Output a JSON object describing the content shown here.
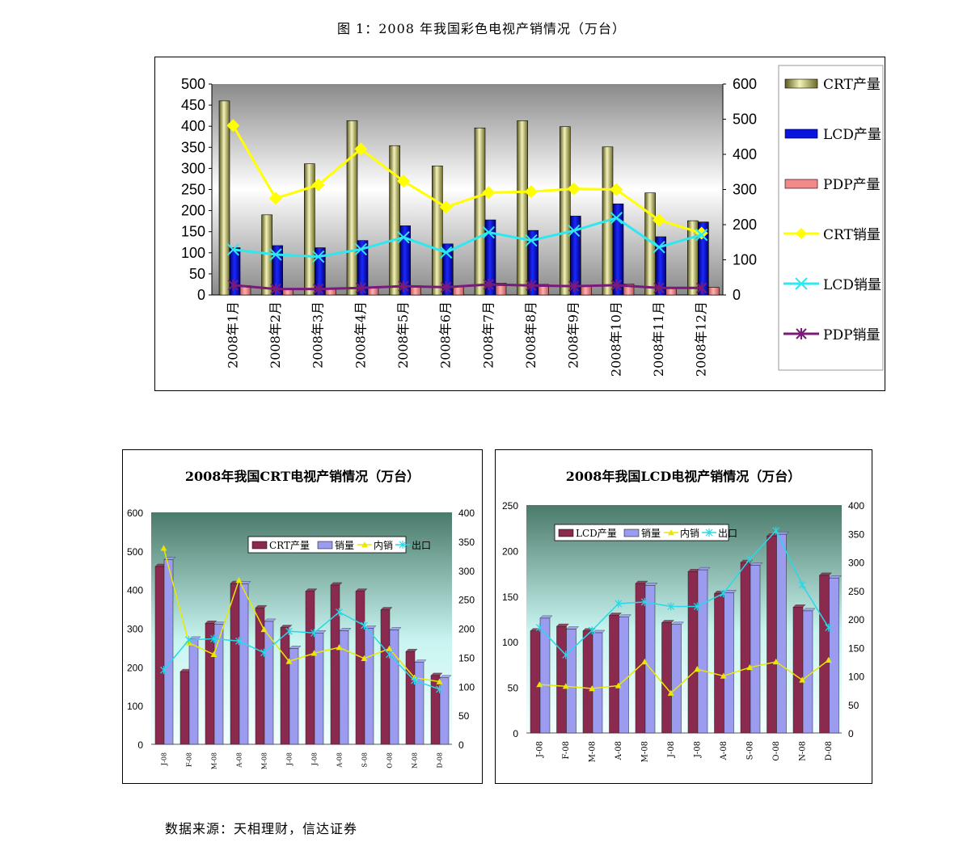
{
  "figure_title": "图 1：2008 年我国彩色电视产销情况（万台）",
  "source": "数据来源：天相理财，信达证券",
  "colors": {
    "crt_bar": "#c9c87a",
    "lcd_bar": "#0a14e0",
    "pdp_bar": "#f28a8a",
    "crt_line": "#ffff00",
    "lcd_line": "#2ee8f0",
    "pdp_line": "#7a1a7a",
    "maroon_bar": "#8a2a4e",
    "lav_bar": "#9b9bf0",
    "yellow_line": "#e8e800",
    "cyan_line": "#28d8e8"
  },
  "chart_data": [
    {
      "id": "top",
      "type": "bar",
      "title": "",
      "categories": [
        "2008年1月",
        "2008年2月",
        "2008年3月",
        "2008年4月",
        "2008年5月",
        "2008年6月",
        "2008年7月",
        "2008年8月",
        "2008年9月",
        "2008年10月",
        "2008年11月",
        "2008年12月"
      ],
      "left_axis": {
        "ylim": [
          0,
          500
        ],
        "ticks": [
          "0",
          "50",
          "100",
          "150",
          "200",
          "250",
          "300",
          "350",
          "400",
          "450",
          "500"
        ]
      },
      "right_axis": {
        "ylim": [
          0,
          600
        ],
        "ticks": [
          "0",
          "100",
          "200",
          "300",
          "400",
          "500",
          "600"
        ]
      },
      "legend_position": "right",
      "bar_series": [
        {
          "name": "CRT产量",
          "values": [
            460,
            190,
            311,
            413,
            354,
            306,
            396,
            413,
            399,
            351,
            242,
            176
          ]
        },
        {
          "name": "LCD产量",
          "values": [
            112,
            117,
            112,
            129,
            164,
            121,
            178,
            153,
            187,
            216,
            138,
            173
          ]
        },
        {
          "name": "PDP产量",
          "values": [
            22,
            14,
            14,
            17,
            22,
            20,
            28,
            25,
            22,
            26,
            18,
            18
          ]
        }
      ],
      "line_series": [
        {
          "name": "CRT销量",
          "axis": "right",
          "values": [
            482,
            275,
            313,
            415,
            324,
            250,
            291,
            294,
            302,
            300,
            213,
            176
          ]
        },
        {
          "name": "LCD销量",
          "axis": "right",
          "values": [
            129,
            115,
            109,
            130,
            164,
            121,
            178,
            155,
            183,
            219,
            136,
            171
          ]
        },
        {
          "name": "PDP销量",
          "axis": "right",
          "values": [
            28,
            17,
            17,
            20,
            25,
            22,
            30,
            27,
            25,
            28,
            20,
            20
          ]
        }
      ]
    },
    {
      "id": "crt",
      "type": "bar",
      "title": "2008年我国CRT电视产销情况（万台）",
      "categories": [
        "J-08",
        "F-08",
        "M-08",
        "A-08",
        "M-08",
        "J-08",
        "J-08",
        "A-08",
        "S-08",
        "O-08",
        "N-08",
        "D-08"
      ],
      "left_axis": {
        "ylim": [
          0,
          600
        ],
        "ticks": [
          "0",
          "100",
          "200",
          "300",
          "400",
          "500",
          "600"
        ]
      },
      "right_axis": {
        "ylim": [
          0,
          400
        ],
        "ticks": [
          "0",
          "50",
          "100",
          "150",
          "200",
          "250",
          "300",
          "350",
          "400"
        ]
      },
      "legend_position": "top-center",
      "bar_series": [
        {
          "name": "CRT产量",
          "values": [
            460,
            188,
            313,
            416,
            353,
            302,
            396,
            412,
            396,
            348,
            240,
            178
          ]
        },
        {
          "name": "销量",
          "values": [
            478,
            272,
            310,
            415,
            318,
            248,
            288,
            294,
            300,
            296,
            212,
            172
          ]
        }
      ],
      "line_series": [
        {
          "name": "内销",
          "axis": "right",
          "values": [
            338,
            175,
            155,
            283,
            198,
            143,
            157,
            167,
            148,
            165,
            115,
            108
          ]
        },
        {
          "name": "出口",
          "axis": "right",
          "values": [
            128,
            180,
            182,
            178,
            158,
            195,
            192,
            228,
            205,
            155,
            110,
            95
          ]
        }
      ]
    },
    {
      "id": "lcd",
      "type": "bar",
      "title": "2008年我国LCD电视产销情况（万台）",
      "categories": [
        "J-08",
        "F-08",
        "M-08",
        "A-08",
        "M-08",
        "J-08",
        "J-08",
        "A-08",
        "S-08",
        "O-08",
        "N-08",
        "D-08"
      ],
      "left_axis": {
        "ylim": [
          0,
          250
        ],
        "ticks": [
          "0",
          "50",
          "100",
          "150",
          "200",
          "250"
        ]
      },
      "right_axis": {
        "ylim": [
          0,
          400
        ],
        "ticks": [
          "0",
          "50",
          "100",
          "150",
          "200",
          "250",
          "300",
          "350",
          "400"
        ]
      },
      "legend_position": "top-center",
      "bar_series": [
        {
          "name": "LCD产量",
          "values": [
            112,
            117,
            112,
            129,
            164,
            121,
            177,
            153,
            187,
            216,
            138,
            173
          ]
        },
        {
          "name": "销量",
          "values": [
            126,
            114,
            110,
            127,
            162,
            119,
            179,
            154,
            184,
            218,
            134,
            170
          ]
        }
      ],
      "line_series": [
        {
          "name": "内销",
          "axis": "right",
          "values": [
            85,
            82,
            78,
            83,
            125,
            70,
            112,
            100,
            115,
            125,
            93,
            128
          ]
        },
        {
          "name": "出口",
          "axis": "right",
          "values": [
            185,
            137,
            180,
            227,
            230,
            222,
            222,
            245,
            305,
            355,
            260,
            185
          ]
        }
      ]
    }
  ]
}
